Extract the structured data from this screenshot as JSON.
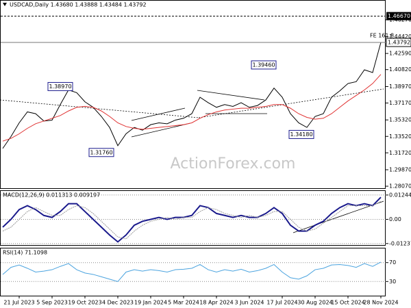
{
  "chart_data": [
    {
      "type": "line",
      "title": "USDCAD,Daily  1.43680 1.43888 1.43484 1.43792",
      "watermark": "ActionForex.com",
      "fibo_label": "FE 161.8",
      "ylim": [
        1.2785,
        1.4836
      ],
      "yticks": [
        {
          "value": 1.4627,
          "label": "1.46270"
        },
        {
          "value": 1.4442,
          "label": "1.44420"
        },
        {
          "value": 1.4259,
          "label": "1.42590"
        },
        {
          "value": 1.4082,
          "label": "1.40820"
        },
        {
          "value": 1.3897,
          "label": "1.38970"
        },
        {
          "value": 1.3717,
          "label": "1.37170"
        },
        {
          "value": 1.3532,
          "label": "1.35320"
        },
        {
          "value": 1.3352,
          "label": "1.33520"
        },
        {
          "value": 1.3172,
          "label": "1.31720"
        },
        {
          "value": 1.2987,
          "label": "1.29870"
        },
        {
          "value": 1.2807,
          "label": "1.28070"
        }
      ],
      "grid": false,
      "level_line": {
        "value": 1.4667,
        "label": "1.46670"
      },
      "price_line": {
        "value": 1.43792,
        "label": "1.43792"
      },
      "annotations": [
        {
          "value": 1.3897,
          "label": "1.38970"
        },
        {
          "value": 1.3176,
          "label": "1.31760"
        },
        {
          "value": 1.3946,
          "label": "1.39460"
        },
        {
          "value": 1.3418,
          "label": "1.34180"
        }
      ],
      "series": [
        {
          "name": "USDCAD",
          "color": "#000000",
          "values": [
            1.322,
            1.335,
            1.35,
            1.362,
            1.36,
            1.352,
            1.353,
            1.37,
            1.386,
            1.383,
            1.373,
            1.367,
            1.357,
            1.345,
            1.325,
            1.338,
            1.345,
            1.342,
            1.348,
            1.35,
            1.349,
            1.353,
            1.355,
            1.36,
            1.378,
            1.372,
            1.367,
            1.37,
            1.368,
            1.372,
            1.367,
            1.369,
            1.375,
            1.388,
            1.378,
            1.36,
            1.35,
            1.345,
            1.357,
            1.36,
            1.378,
            1.385,
            1.393,
            1.395,
            1.408,
            1.405,
            1.43792
          ]
        },
        {
          "name": "MA",
          "color": "#e03030",
          "values": [
            1.33,
            1.333,
            1.338,
            1.344,
            1.349,
            1.352,
            1.355,
            1.358,
            1.363,
            1.367,
            1.368,
            1.367,
            1.363,
            1.357,
            1.35,
            1.346,
            1.344,
            1.343,
            1.344,
            1.345,
            1.346,
            1.347,
            1.348,
            1.35,
            1.355,
            1.359,
            1.362,
            1.364,
            1.365,
            1.366,
            1.366,
            1.367,
            1.368,
            1.37,
            1.37,
            1.366,
            1.36,
            1.356,
            1.354,
            1.355,
            1.36,
            1.367,
            1.374,
            1.38,
            1.386,
            1.393,
            1.403
          ]
        }
      ]
    },
    {
      "type": "line",
      "title": "MACD(12,26,9) 0.011313 0.009197",
      "ylim": [
        -0.01313,
        0.01451
      ],
      "yticks": [
        0.012441,
        {
          "value": 0,
          "label": "0.00"
        },
        -0.01237
      ],
      "grid": true,
      "series": [
        {
          "name": "MACD",
          "color": "#1a1a8c",
          "values": [
            -0.004,
            0.0,
            0.005,
            0.007,
            0.005,
            0.002,
            0.001,
            0.004,
            0.008,
            0.008,
            0.004,
            0.0,
            -0.004,
            -0.008,
            -0.0115,
            -0.008,
            -0.003,
            -0.001,
            0.0,
            0.001,
            0.0,
            0.001,
            0.001,
            0.002,
            0.007,
            0.006,
            0.003,
            0.002,
            0.001,
            0.002,
            0.001,
            0.001,
            0.003,
            0.006,
            0.003,
            -0.003,
            -0.006,
            -0.006,
            -0.003,
            -0.001,
            0.003,
            0.006,
            0.008,
            0.007,
            0.008,
            0.007,
            0.011313
          ]
        },
        {
          "name": "Signal",
          "color": "#9a9a9a",
          "values": [
            -0.006,
            -0.004,
            0.0,
            0.004,
            0.006,
            0.004,
            0.002,
            0.002,
            0.005,
            0.007,
            0.006,
            0.003,
            -0.001,
            -0.005,
            -0.009,
            -0.01,
            -0.006,
            -0.003,
            -0.001,
            0.0,
            0.001,
            0.0,
            0.001,
            0.001,
            0.004,
            0.006,
            0.005,
            0.003,
            0.002,
            0.001,
            0.002,
            0.001,
            0.002,
            0.004,
            0.004,
            0.0,
            -0.004,
            -0.006,
            -0.005,
            -0.002,
            0.001,
            0.004,
            0.007,
            0.007,
            0.007,
            0.007,
            0.009197
          ]
        }
      ]
    },
    {
      "type": "line",
      "title": "RSI(14) 71.1098",
      "ylim": [
        0,
        100
      ],
      "yticks": [
        70,
        30
      ],
      "grid": true,
      "categories": [
        null,
        null,
        "21 Jul 2023",
        null,
        null,
        null,
        "5 Sep 2023",
        null,
        null,
        null,
        "19 Oct 2023",
        null,
        null,
        null,
        "4 Dec 2023",
        null,
        null,
        null,
        "19 Jan 2024",
        null,
        null,
        null,
        "5 Mar 2024",
        null,
        null,
        null,
        "18 Apr 2024",
        null,
        null,
        null,
        "3 Jun 2024",
        null,
        null,
        null,
        "17 Jul 2024",
        null,
        null,
        null,
        "30 Aug 2024",
        null,
        null,
        null,
        "15 Oct 2024",
        null,
        null,
        null,
        "28 Nov 2024"
      ],
      "series": [
        {
          "name": "RSI",
          "color": "#4aa3df",
          "values": [
            45,
            60,
            65,
            58,
            50,
            52,
            55,
            62,
            68,
            55,
            48,
            45,
            40,
            35,
            30,
            50,
            55,
            52,
            55,
            53,
            50,
            55,
            56,
            58,
            66,
            55,
            50,
            55,
            52,
            56,
            50,
            53,
            58,
            66,
            50,
            38,
            35,
            42,
            55,
            58,
            65,
            66,
            64,
            60,
            68,
            62,
            71.1098
          ]
        }
      ]
    }
  ]
}
